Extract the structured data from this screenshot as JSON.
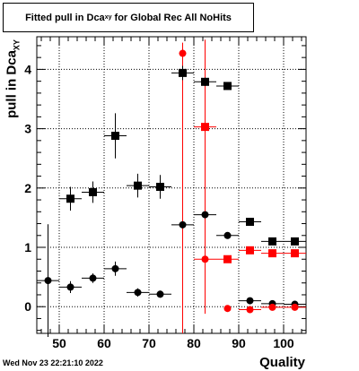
{
  "title": {
    "main": "Fitted pull in Dca",
    "sub": "xy",
    "tail": " for Global Rec All NoHits"
  },
  "ylabel": {
    "main": "pull in Dca",
    "sub": "XY"
  },
  "xlabel": "Quality",
  "timestamp": "Wed Nov 23 22:21:10 2022",
  "chart_data": {
    "type": "scatter",
    "xlim": [
      45,
      105
    ],
    "ylim": [
      -0.45,
      4.55
    ],
    "xticks": [
      50,
      60,
      70,
      80,
      90,
      100
    ],
    "yticks": [
      0,
      1,
      2,
      3,
      4
    ],
    "grid": true,
    "series": [
      {
        "marker": "square",
        "color": "#000000",
        "points": [
          {
            "x": 52.5,
            "y": 1.82,
            "xerr": 2.5,
            "yerr": 0.2
          },
          {
            "x": 57.5,
            "y": 1.93,
            "xerr": 2.5,
            "yerr": 0.18
          },
          {
            "x": 62.5,
            "y": 2.88,
            "xerr": 2.5,
            "yerr": 0.38
          },
          {
            "x": 67.5,
            "y": 2.04,
            "xerr": 2.5,
            "yerr": 0.2
          },
          {
            "x": 72.5,
            "y": 2.02,
            "xerr": 2.5,
            "yerr": 0.2
          },
          {
            "x": 77.5,
            "y": 3.94,
            "xerr": 2.5,
            "yerr": 0.12
          },
          {
            "x": 82.5,
            "y": 3.79,
            "xerr": 2.5,
            "yerr": 0.07
          },
          {
            "x": 87.5,
            "y": 3.72,
            "xerr": 2.5,
            "yerr": 0.06
          },
          {
            "x": 92.5,
            "y": 1.43,
            "xerr": 2.5,
            "yerr": 0.03
          },
          {
            "x": 97.5,
            "y": 1.1,
            "xerr": 2.5,
            "yerr": 0.02
          },
          {
            "x": 102.5,
            "y": 1.1,
            "xerr": 2.5,
            "yerr": 0.02
          }
        ]
      },
      {
        "marker": "circle",
        "color": "#000000",
        "points": [
          {
            "x": 47.5,
            "y": 0.44,
            "xerr": 2.5,
            "yerr": 0.95
          },
          {
            "x": 52.5,
            "y": 0.33,
            "xerr": 2.5,
            "yerr": 0.1
          },
          {
            "x": 57.5,
            "y": 0.48,
            "xerr": 2.5,
            "yerr": 0.08
          },
          {
            "x": 62.5,
            "y": 0.64,
            "xerr": 2.5,
            "yerr": 0.12
          },
          {
            "x": 67.5,
            "y": 0.24,
            "xerr": 2.5,
            "yerr": 0.07
          },
          {
            "x": 72.5,
            "y": 0.21,
            "xerr": 2.5,
            "yerr": 0.06
          },
          {
            "x": 77.5,
            "y": 1.38,
            "xerr": 2.5,
            "yerr": 0.03
          },
          {
            "x": 82.5,
            "y": 1.55,
            "xerr": 2.5,
            "yerr": 0.03
          },
          {
            "x": 87.5,
            "y": 1.2,
            "xerr": 2.5,
            "yerr": 0.02
          },
          {
            "x": 92.5,
            "y": 0.1,
            "xerr": 2.5,
            "yerr": 0.01
          },
          {
            "x": 97.5,
            "y": 0.05,
            "xerr": 2.5,
            "yerr": 0.01
          },
          {
            "x": 102.5,
            "y": 0.04,
            "xerr": 2.5,
            "yerr": 0.01
          }
        ]
      },
      {
        "marker": "circle",
        "color": "#ff0000",
        "points": [
          {
            "x": 77.5,
            "y": 4.27,
            "xerr": 0.8,
            "yerr": 4.7
          },
          {
            "x": 87.5,
            "y": -0.03,
            "xerr": 0.8,
            "yerr": 0.03
          },
          {
            "x": 92.5,
            "y": -0.05,
            "xerr": 2.5,
            "yerr": 0.02
          },
          {
            "x": 97.5,
            "y": -0.01,
            "xerr": 2.5,
            "yerr": 0.01
          },
          {
            "x": 102.5,
            "y": -0.01,
            "xerr": 2.5,
            "yerr": 0.01
          }
        ]
      },
      {
        "marker": "square",
        "color": "#ff0000",
        "points": [
          {
            "x": 82.5,
            "y": 3.03,
            "xerr": 2.5,
            "yerr": 0.0
          }
        ]
      },
      {
        "marker": "circle",
        "color": "#ff0000",
        "points": [
          {
            "x": 82.5,
            "y": 0.8,
            "xerr": 2.5,
            "yerr": 0.0
          }
        ]
      },
      {
        "marker": "square",
        "color": "#ff0000",
        "points": [
          {
            "x": 87.5,
            "y": 0.8,
            "xerr": 2.5,
            "yerr": 0.02
          },
          {
            "x": 92.5,
            "y": 0.95,
            "xerr": 2.5,
            "yerr": 0.02
          },
          {
            "x": 97.5,
            "y": 0.9,
            "xerr": 2.5,
            "yerr": 0.01
          },
          {
            "x": 102.5,
            "y": 0.9,
            "xerr": 2.5,
            "yerr": 0.01
          }
        ]
      }
    ],
    "red_vertical_errors": [
      {
        "x": 77.5,
        "ylow": -0.45,
        "yhigh": 4.45
      },
      {
        "x": 82.5,
        "ylow": -0.12,
        "yhigh": 4.5
      }
    ]
  }
}
